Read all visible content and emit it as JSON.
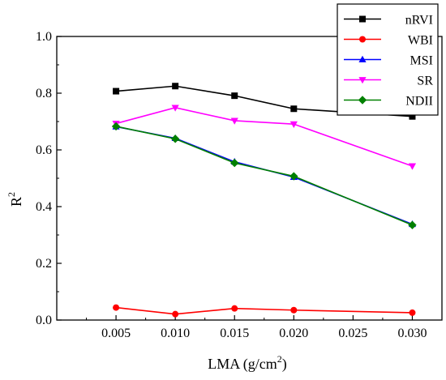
{
  "chart_data": {
    "type": "line",
    "x": [
      0.005,
      0.01,
      0.015,
      0.02,
      0.03
    ],
    "x_ticks": [
      "0.005",
      "0.010",
      "0.015",
      "0.020",
      "0.025",
      "0.030"
    ],
    "x_tick_values": [
      0.005,
      0.01,
      0.015,
      0.02,
      0.025,
      0.03
    ],
    "xlim": [
      0.0,
      0.0325
    ],
    "y_ticks": [
      "0.0",
      "0.2",
      "0.4",
      "0.6",
      "0.8",
      "1.0"
    ],
    "y_tick_values": [
      0.0,
      0.2,
      0.4,
      0.6,
      0.8,
      1.0
    ],
    "ylim": [
      0.0,
      1.0
    ],
    "xlabel_main": "LMA (g/cm",
    "xlabel_sup": "2",
    "xlabel_end": ")",
    "ylabel_main": "R",
    "ylabel_sup": "2",
    "grid": false,
    "legend_position": "top-right",
    "series": [
      {
        "name": "nRVI",
        "color": "#000000",
        "marker": "square",
        "values": [
          0.807,
          0.825,
          0.791,
          0.745,
          0.718
        ]
      },
      {
        "name": "WBI",
        "color": "#ff0000",
        "marker": "circle",
        "values": [
          0.044,
          0.021,
          0.041,
          0.035,
          0.026
        ]
      },
      {
        "name": "MSI",
        "color": "#0000ff",
        "marker": "triangle-up",
        "values": [
          0.682,
          0.641,
          0.558,
          0.504,
          0.338
        ]
      },
      {
        "name": "SR",
        "color": "#ff00ff",
        "marker": "triangle-down",
        "values": [
          0.693,
          0.749,
          0.703,
          0.691,
          0.543
        ]
      },
      {
        "name": "NDII",
        "color": "#008000",
        "marker": "diamond",
        "values": [
          0.683,
          0.639,
          0.554,
          0.507,
          0.335
        ]
      }
    ]
  }
}
